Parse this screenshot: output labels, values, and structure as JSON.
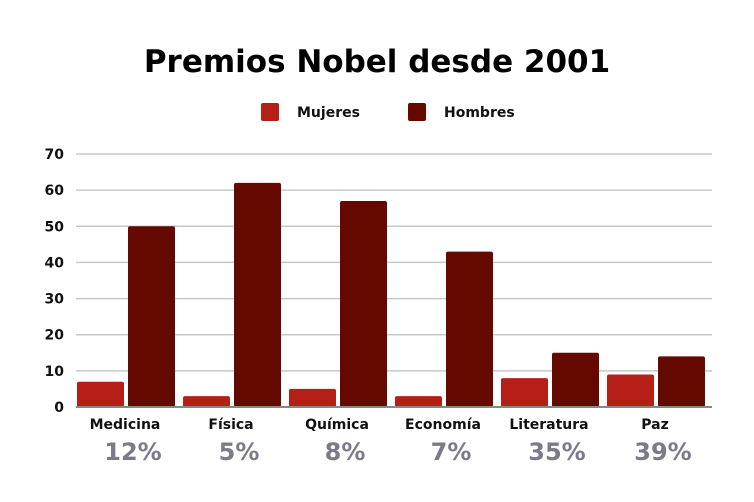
{
  "chart_data": {
    "type": "bar",
    "title": "Premios Nobel desde 2001",
    "categories": [
      "Medicina",
      "Física",
      "Química",
      "Economía",
      "Literatura",
      "Paz"
    ],
    "series": [
      {
        "name": "Mujeres",
        "values": [
          7,
          3,
          5,
          3,
          8,
          9
        ],
        "color": "#b51f17"
      },
      {
        "name": "Hombres",
        "values": [
          50,
          62,
          57,
          43,
          15,
          14
        ],
        "color": "#650800"
      }
    ],
    "annotations": [
      "12%",
      "5%",
      "8%",
      "7%",
      "35%",
      "39%"
    ],
    "annotation_color": "#7a7a88",
    "yticks": [
      0,
      10,
      20,
      30,
      40,
      50,
      60,
      70
    ],
    "ylim": [
      0,
      70
    ],
    "grid": true,
    "legend": "top-center",
    "xlabel": "",
    "ylabel": ""
  }
}
